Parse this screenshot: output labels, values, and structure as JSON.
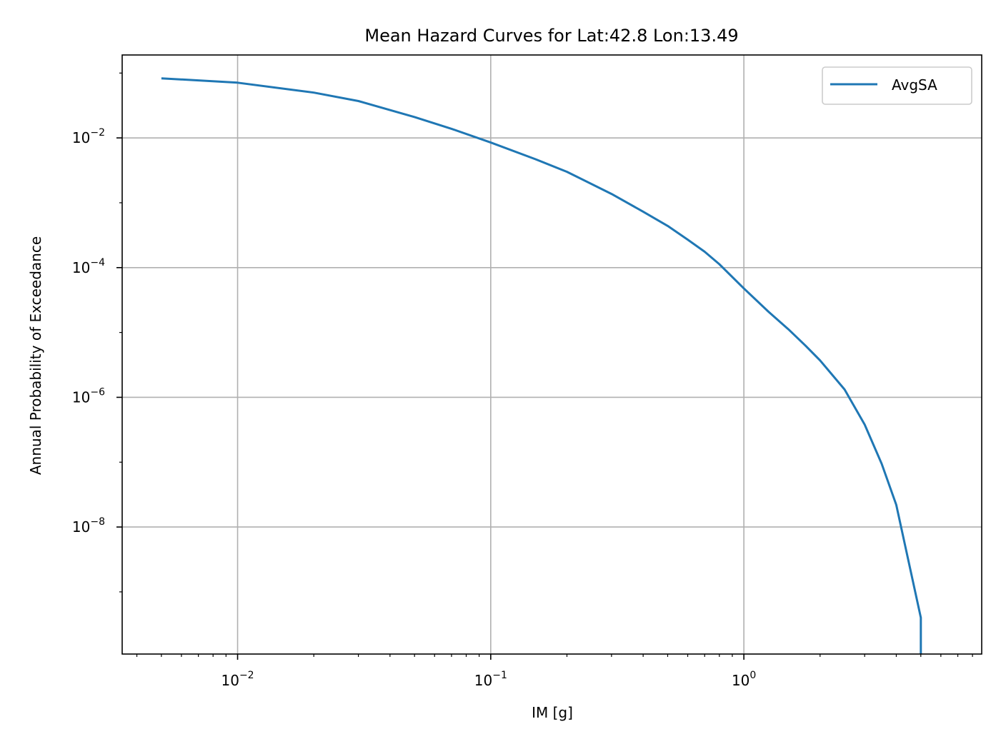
{
  "chart_data": {
    "type": "line",
    "title": "Mean Hazard Curves for Lat:42.8 Lon:13.49",
    "xlabel": "IM [g]",
    "ylabel": "Annual Probability of Exceedance",
    "xscale": "log",
    "yscale": "log",
    "xlim": [
      0.0035,
      8.7
    ],
    "ylim": [
      1.1e-10,
      0.19
    ],
    "grid": true,
    "legend_position": "upper right",
    "x_ticks": [
      {
        "value": 0.01,
        "base": "10",
        "exp": "−2"
      },
      {
        "value": 0.1,
        "base": "10",
        "exp": "−1"
      },
      {
        "value": 1,
        "base": "10",
        "exp": "0"
      }
    ],
    "y_ticks": [
      {
        "value": 0.01,
        "base": "10",
        "exp": "−2"
      },
      {
        "value": 0.0001,
        "base": "10",
        "exp": "−4"
      },
      {
        "value": 1e-06,
        "base": "10",
        "exp": "−6"
      },
      {
        "value": 1e-08,
        "base": "10",
        "exp": "−8"
      }
    ],
    "series": [
      {
        "name": "AvgSA",
        "color": "#1f77b4",
        "x": [
          0.005,
          0.01,
          0.02,
          0.03,
          0.05,
          0.07,
          0.1,
          0.15,
          0.2,
          0.3,
          0.4,
          0.5,
          0.6,
          0.7,
          0.8,
          1.0,
          1.25,
          1.5,
          1.75,
          2.0,
          2.5,
          3.0,
          3.5,
          4.0,
          5.0,
          5.0
        ],
        "y": [
          0.083,
          0.071,
          0.05,
          0.037,
          0.021,
          0.0138,
          0.0085,
          0.0047,
          0.003,
          0.00137,
          0.00073,
          0.00044,
          0.00027,
          0.000176,
          0.000113,
          4.78e-05,
          2.09e-05,
          1.12e-05,
          6.3e-06,
          3.7e-06,
          1.32e-06,
          3.8e-07,
          9.5e-08,
          2.2e-08,
          4e-10,
          1.1e-10
        ]
      }
    ]
  }
}
